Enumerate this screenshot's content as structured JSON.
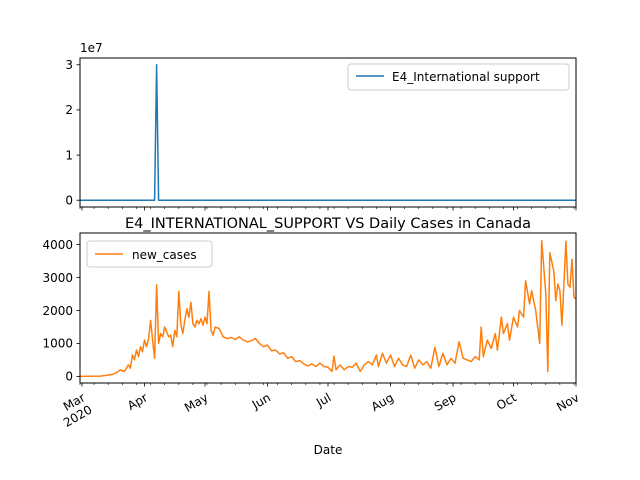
{
  "chart_data": [
    {
      "type": "line",
      "title": "",
      "xlabel": "",
      "ylabel": "",
      "y_offset_label": "1e7",
      "xlim": [
        "2020-02-29",
        "2020-11-01"
      ],
      "ylim": [
        -1500000,
        31500000
      ],
      "yticks": [
        0,
        10000000,
        20000000,
        30000000
      ],
      "ytick_labels": [
        "0",
        "1",
        "2",
        "3"
      ],
      "legend": "upper right",
      "grid": false,
      "color": "#1f77b4",
      "series": [
        {
          "name": "E4_International support",
          "points": [
            [
              "2020-02-29",
              0
            ],
            [
              "2020-04-06",
              0
            ],
            [
              "2020-04-07",
              30000000
            ],
            [
              "2020-04-08",
              0
            ],
            [
              "2020-11-01",
              0
            ]
          ]
        }
      ]
    },
    {
      "type": "line",
      "title": "E4_INTERNATIONAL_SUPPORT VS Daily Cases in Canada",
      "xlabel": "Date",
      "ylabel": "",
      "xlim": [
        "2020-02-29",
        "2020-11-01"
      ],
      "ylim": [
        -200,
        4350
      ],
      "yticks": [
        0,
        1000,
        2000,
        3000,
        4000
      ],
      "ytick_labels": [
        "0",
        "1000",
        "2000",
        "3000",
        "4000"
      ],
      "xticks": [
        "2020-03-01",
        "2020-04-01",
        "2020-05-01",
        "2020-06-01",
        "2020-07-01",
        "2020-08-01",
        "2020-09-01",
        "2020-10-01",
        "2020-11-01"
      ],
      "xtick_labels": [
        "Mar\n2020",
        "Apr",
        "May",
        "Jun",
        "Jul",
        "Aug",
        "Sep",
        "Oct",
        "Nov"
      ],
      "legend": "upper left",
      "grid": false,
      "color": "#ff7f0e",
      "series": [
        {
          "name": "new_cases",
          "points": [
            [
              "2020-02-29",
              0
            ],
            [
              "2020-03-05",
              5
            ],
            [
              "2020-03-10",
              10
            ],
            [
              "2020-03-13",
              30
            ],
            [
              "2020-03-16",
              60
            ],
            [
              "2020-03-18",
              110
            ],
            [
              "2020-03-20",
              200
            ],
            [
              "2020-03-22",
              150
            ],
            [
              "2020-03-24",
              350
            ],
            [
              "2020-03-25",
              250
            ],
            [
              "2020-03-26",
              650
            ],
            [
              "2020-03-27",
              500
            ],
            [
              "2020-03-28",
              800
            ],
            [
              "2020-03-29",
              600
            ],
            [
              "2020-03-30",
              900
            ],
            [
              "2020-03-31",
              750
            ],
            [
              "2020-04-01",
              1100
            ],
            [
              "2020-04-02",
              900
            ],
            [
              "2020-04-03",
              1150
            ],
            [
              "2020-04-04",
              1700
            ],
            [
              "2020-04-05",
              1100
            ],
            [
              "2020-04-06",
              550
            ],
            [
              "2020-04-07",
              2780
            ],
            [
              "2020-04-08",
              1000
            ],
            [
              "2020-04-09",
              1300
            ],
            [
              "2020-04-10",
              1200
            ],
            [
              "2020-04-11",
              1500
            ],
            [
              "2020-04-12",
              1350
            ],
            [
              "2020-04-13",
              1200
            ],
            [
              "2020-04-14",
              1250
            ],
            [
              "2020-04-15",
              900
            ],
            [
              "2020-04-16",
              1400
            ],
            [
              "2020-04-17",
              1200
            ],
            [
              "2020-04-18",
              2580
            ],
            [
              "2020-04-19",
              1600
            ],
            [
              "2020-04-20",
              1300
            ],
            [
              "2020-04-21",
              1700
            ],
            [
              "2020-04-22",
              2050
            ],
            [
              "2020-04-23",
              1800
            ],
            [
              "2020-04-24",
              2250
            ],
            [
              "2020-04-25",
              1600
            ],
            [
              "2020-04-26",
              1500
            ],
            [
              "2020-04-27",
              1700
            ],
            [
              "2020-04-28",
              1600
            ],
            [
              "2020-04-29",
              1750
            ],
            [
              "2020-04-30",
              1550
            ],
            [
              "2020-05-01",
              1800
            ],
            [
              "2020-05-02",
              1600
            ],
            [
              "2020-05-03",
              2580
            ],
            [
              "2020-05-04",
              1400
            ],
            [
              "2020-05-05",
              1250
            ],
            [
              "2020-05-06",
              1500
            ],
            [
              "2020-05-08",
              1450
            ],
            [
              "2020-05-10",
              1200
            ],
            [
              "2020-05-12",
              1150
            ],
            [
              "2020-05-14",
              1180
            ],
            [
              "2020-05-16",
              1120
            ],
            [
              "2020-05-18",
              1200
            ],
            [
              "2020-05-20",
              1100
            ],
            [
              "2020-05-22",
              1050
            ],
            [
              "2020-05-24",
              1080
            ],
            [
              "2020-05-26",
              1150
            ],
            [
              "2020-05-28",
              1000
            ],
            [
              "2020-05-30",
              900
            ],
            [
              "2020-06-01",
              950
            ],
            [
              "2020-06-03",
              780
            ],
            [
              "2020-06-05",
              800
            ],
            [
              "2020-06-07",
              680
            ],
            [
              "2020-06-09",
              720
            ],
            [
              "2020-06-11",
              550
            ],
            [
              "2020-06-13",
              600
            ],
            [
              "2020-06-15",
              450
            ],
            [
              "2020-06-17",
              480
            ],
            [
              "2020-06-19",
              380
            ],
            [
              "2020-06-21",
              320
            ],
            [
              "2020-06-23",
              380
            ],
            [
              "2020-06-25",
              300
            ],
            [
              "2020-06-27",
              400
            ],
            [
              "2020-06-29",
              300
            ],
            [
              "2020-07-01",
              280
            ],
            [
              "2020-07-03",
              150
            ],
            [
              "2020-07-04",
              620
            ],
            [
              "2020-07-05",
              200
            ],
            [
              "2020-07-07",
              350
            ],
            [
              "2020-07-09",
              200
            ],
            [
              "2020-07-11",
              300
            ],
            [
              "2020-07-13",
              280
            ],
            [
              "2020-07-15",
              400
            ],
            [
              "2020-07-17",
              150
            ],
            [
              "2020-07-19",
              350
            ],
            [
              "2020-07-21",
              450
            ],
            [
              "2020-07-23",
              350
            ],
            [
              "2020-07-25",
              650
            ],
            [
              "2020-07-26",
              300
            ],
            [
              "2020-07-28",
              700
            ],
            [
              "2020-07-30",
              400
            ],
            [
              "2020-08-01",
              650
            ],
            [
              "2020-08-03",
              300
            ],
            [
              "2020-08-05",
              550
            ],
            [
              "2020-08-07",
              350
            ],
            [
              "2020-08-09",
              300
            ],
            [
              "2020-08-11",
              650
            ],
            [
              "2020-08-13",
              250
            ],
            [
              "2020-08-15",
              500
            ],
            [
              "2020-08-17",
              350
            ],
            [
              "2020-08-19",
              450
            ],
            [
              "2020-08-21",
              250
            ],
            [
              "2020-08-23",
              880
            ],
            [
              "2020-08-25",
              300
            ],
            [
              "2020-08-27",
              700
            ],
            [
              "2020-08-29",
              350
            ],
            [
              "2020-08-31",
              550
            ],
            [
              "2020-09-02",
              400
            ],
            [
              "2020-09-04",
              1050
            ],
            [
              "2020-09-06",
              550
            ],
            [
              "2020-09-08",
              500
            ],
            [
              "2020-09-10",
              450
            ],
            [
              "2020-09-12",
              600
            ],
            [
              "2020-09-14",
              500
            ],
            [
              "2020-09-15",
              1500
            ],
            [
              "2020-09-16",
              600
            ],
            [
              "2020-09-18",
              1100
            ],
            [
              "2020-09-20",
              850
            ],
            [
              "2020-09-22",
              1300
            ],
            [
              "2020-09-23",
              800
            ],
            [
              "2020-09-25",
              1800
            ],
            [
              "2020-09-26",
              1300
            ],
            [
              "2020-09-28",
              1600
            ],
            [
              "2020-09-29",
              1100
            ],
            [
              "2020-10-01",
              1800
            ],
            [
              "2020-10-03",
              1500
            ],
            [
              "2020-10-04",
              2000
            ],
            [
              "2020-10-06",
              1800
            ],
            [
              "2020-10-07",
              2900
            ],
            [
              "2020-10-09",
              2200
            ],
            [
              "2020-10-10",
              2600
            ],
            [
              "2020-10-12",
              2000
            ],
            [
              "2020-10-14",
              1000
            ],
            [
              "2020-10-15",
              4120
            ],
            [
              "2020-10-17",
              2500
            ],
            [
              "2020-10-18",
              150
            ],
            [
              "2020-10-19",
              3750
            ],
            [
              "2020-10-21",
              3200
            ],
            [
              "2020-10-22",
              2300
            ],
            [
              "2020-10-23",
              2800
            ],
            [
              "2020-10-24",
              2600
            ],
            [
              "2020-10-25",
              1550
            ],
            [
              "2020-10-26",
              2800
            ],
            [
              "2020-10-27",
              4100
            ],
            [
              "2020-10-28",
              2800
            ],
            [
              "2020-10-29",
              2700
            ],
            [
              "2020-10-30",
              3550
            ],
            [
              "2020-10-31",
              2400
            ],
            [
              "2020-11-01",
              2350
            ]
          ]
        }
      ]
    }
  ]
}
